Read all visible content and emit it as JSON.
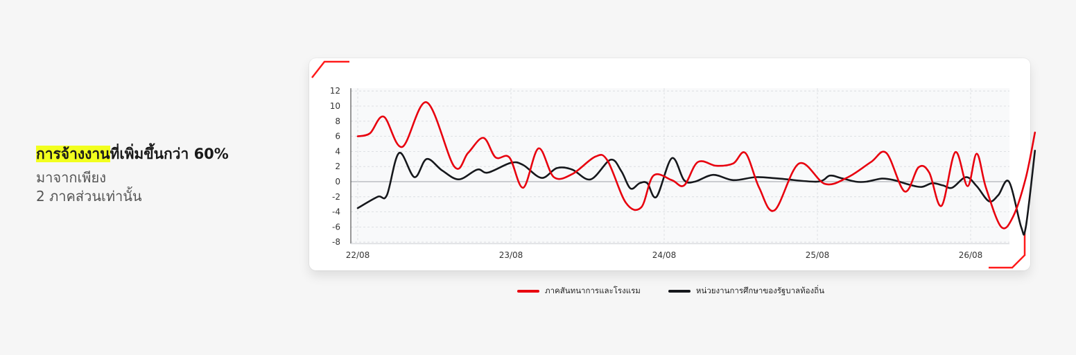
{
  "headline": {
    "highlight": "การจ้างงาน",
    "rest": "ที่เพิ่มขึ้นกว่า 60%",
    "line2": "มาจากเพียง",
    "line3": "2 ภาคส่วนเท่านั้น"
  },
  "colors": {
    "series1": "#e8000e",
    "series2": "#16181c",
    "highlight": "#f2ff1e",
    "accent": "#ff1a1a"
  },
  "chart_data": {
    "type": "line",
    "y_ticks": [
      "12",
      "10",
      "8",
      "6",
      "4",
      "2",
      "0",
      "-2",
      "-4",
      "-6",
      "-8"
    ],
    "x_ticks": [
      "22/08",
      "23/08",
      "24/08",
      "25/08",
      "26/08"
    ],
    "ylim": [
      -8,
      12
    ],
    "xlim": [
      0,
      4.3
    ],
    "grid": true,
    "legend_position": "bottom",
    "series": [
      {
        "name": "ภาคสันทนาการและโรงแรม",
        "points": [
          [
            0.0,
            6
          ],
          [
            0.08,
            6.4
          ],
          [
            0.17,
            8.6
          ],
          [
            0.29,
            4.6
          ],
          [
            0.45,
            10.5
          ],
          [
            0.63,
            2
          ],
          [
            0.72,
            3.8
          ],
          [
            0.82,
            5.8
          ],
          [
            0.9,
            3.2
          ],
          [
            0.99,
            3.2
          ],
          [
            1.08,
            -0.8
          ],
          [
            1.18,
            4.4
          ],
          [
            1.28,
            0.6
          ],
          [
            1.4,
            1
          ],
          [
            1.55,
            3.3
          ],
          [
            1.63,
            2.8
          ],
          [
            1.75,
            -2.8
          ],
          [
            1.85,
            -3.4
          ],
          [
            1.93,
            0.8
          ],
          [
            2.05,
            0.2
          ],
          [
            2.13,
            -0.5
          ],
          [
            2.22,
            2.6
          ],
          [
            2.34,
            2.1
          ],
          [
            2.45,
            2.4
          ],
          [
            2.53,
            3.8
          ],
          [
            2.62,
            -0.8
          ],
          [
            2.72,
            -3.8
          ],
          [
            2.88,
            2.4
          ],
          [
            3.05,
            -0.3
          ],
          [
            3.2,
            0.6
          ],
          [
            3.35,
            2.6
          ],
          [
            3.45,
            3.8
          ],
          [
            3.57,
            -1.3
          ],
          [
            3.66,
            1.9
          ],
          [
            3.73,
            1.2
          ],
          [
            3.81,
            -3.2
          ],
          [
            3.9,
            3.9
          ],
          [
            3.98,
            -0.6
          ],
          [
            4.04,
            3.7
          ],
          [
            4.1,
            -0.8
          ],
          [
            4.2,
            -6
          ],
          [
            4.28,
            -4.5
          ],
          [
            4.36,
            0.5
          ],
          [
            4.42,
            6.5
          ]
        ]
      },
      {
        "name": "หน่วยงานการศึกษาของรัฐบาลท้องถิ่น",
        "points": [
          [
            0.0,
            -3.5
          ],
          [
            0.13,
            -2
          ],
          [
            0.19,
            -1.8
          ],
          [
            0.27,
            3.8
          ],
          [
            0.37,
            0.6
          ],
          [
            0.45,
            3
          ],
          [
            0.55,
            1.5
          ],
          [
            0.66,
            0.3
          ],
          [
            0.78,
            1.6
          ],
          [
            0.85,
            1.2
          ],
          [
            1.0,
            2.5
          ],
          [
            1.08,
            2.2
          ],
          [
            1.2,
            0.5
          ],
          [
            1.3,
            1.8
          ],
          [
            1.4,
            1.6
          ],
          [
            1.52,
            0.3
          ],
          [
            1.65,
            2.9
          ],
          [
            1.72,
            1.4
          ],
          [
            1.78,
            -0.9
          ],
          [
            1.84,
            -0.2
          ],
          [
            1.89,
            -0.2
          ],
          [
            1.95,
            -2
          ],
          [
            2.05,
            3.1
          ],
          [
            2.13,
            0.2
          ],
          [
            2.2,
            0
          ],
          [
            2.32,
            0.9
          ],
          [
            2.45,
            0.2
          ],
          [
            2.6,
            0.6
          ],
          [
            2.75,
            0.4
          ],
          [
            3.0,
            0
          ],
          [
            3.08,
            0.8
          ],
          [
            3.15,
            0.5
          ],
          [
            3.25,
            0
          ],
          [
            3.32,
            0
          ],
          [
            3.42,
            0.4
          ],
          [
            3.5,
            0.2
          ],
          [
            3.6,
            -0.4
          ],
          [
            3.68,
            -0.7
          ],
          [
            3.75,
            -0.2
          ],
          [
            3.82,
            -0.5
          ],
          [
            3.88,
            -0.8
          ],
          [
            3.97,
            0.6
          ],
          [
            4.04,
            -0.6
          ],
          [
            4.12,
            -2.6
          ],
          [
            4.18,
            -1.8
          ],
          [
            4.25,
            0
          ],
          [
            4.33,
            -6
          ],
          [
            4.36,
            -6
          ],
          [
            4.42,
            4.1
          ]
        ]
      }
    ]
  }
}
